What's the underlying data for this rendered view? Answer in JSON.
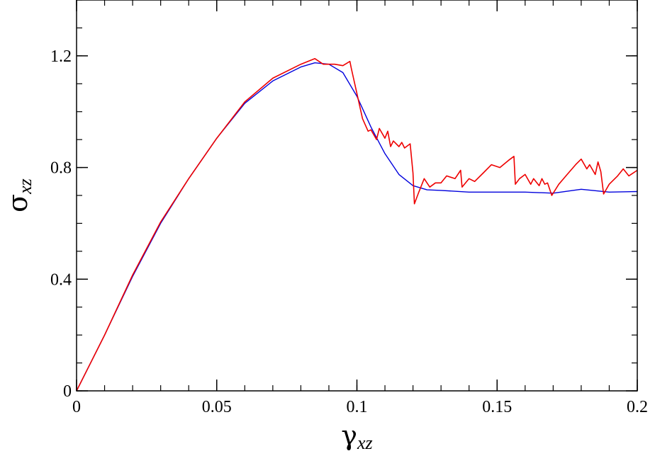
{
  "chart_data": {
    "type": "line",
    "xlabel": {
      "symbol": "γ",
      "subscript": "xz"
    },
    "ylabel": {
      "symbol": "σ",
      "subscript": "xz"
    },
    "xlim": [
      0,
      0.2
    ],
    "ylim": [
      0,
      1.4
    ],
    "x_ticks": [
      0,
      0.05,
      0.1,
      0.15,
      0.2
    ],
    "x_tick_labels": [
      "0",
      "0.05",
      "0.1",
      "0.15",
      "0.2"
    ],
    "x_minor_step": 0.01,
    "y_ticks": [
      0,
      0.4,
      0.8,
      1.2
    ],
    "y_tick_labels": [
      "0",
      "0.4",
      "0.8",
      "1.2"
    ],
    "y_minor_step": 0.1,
    "grid": false,
    "legend": "none",
    "series": [
      {
        "color": "#0000dd",
        "x": [
          0,
          0.01,
          0.02,
          0.03,
          0.04,
          0.05,
          0.06,
          0.07,
          0.08,
          0.085,
          0.09,
          0.095,
          0.1,
          0.105,
          0.11,
          0.115,
          0.12,
          0.125,
          0.13,
          0.14,
          0.15,
          0.16,
          0.17,
          0.18,
          0.19,
          0.2
        ],
        "values": [
          0,
          0.2,
          0.41,
          0.6,
          0.76,
          0.905,
          1.03,
          1.11,
          1.16,
          1.175,
          1.17,
          1.14,
          1.055,
          0.945,
          0.85,
          0.775,
          0.735,
          0.72,
          0.718,
          0.712,
          0.712,
          0.712,
          0.708,
          0.722,
          0.712,
          0.714
        ]
      },
      {
        "color": "#ee0000",
        "x": [
          0,
          0.01,
          0.02,
          0.03,
          0.04,
          0.05,
          0.06,
          0.07,
          0.08,
          0.085,
          0.088,
          0.092,
          0.095,
          0.0975,
          0.098,
          0.1,
          0.102,
          0.104,
          0.105,
          0.107,
          0.108,
          0.11,
          0.111,
          0.112,
          0.113,
          0.115,
          0.116,
          0.117,
          0.119,
          0.12,
          0.1205,
          0.122,
          0.124,
          0.126,
          0.128,
          0.13,
          0.132,
          0.135,
          0.137,
          0.1375,
          0.14,
          0.142,
          0.145,
          0.148,
          0.151,
          0.154,
          0.156,
          0.1565,
          0.158,
          0.16,
          0.162,
          0.163,
          0.165,
          0.166,
          0.167,
          0.168,
          0.169,
          0.1695,
          0.172,
          0.175,
          0.178,
          0.18,
          0.182,
          0.183,
          0.185,
          0.186,
          0.187,
          0.188,
          0.19,
          0.193,
          0.195,
          0.197,
          0.2
        ],
        "values": [
          0,
          0.2,
          0.415,
          0.605,
          0.76,
          0.905,
          1.035,
          1.12,
          1.17,
          1.19,
          1.17,
          1.17,
          1.165,
          1.18,
          1.155,
          1.065,
          0.975,
          0.93,
          0.935,
          0.9,
          0.94,
          0.905,
          0.93,
          0.875,
          0.895,
          0.875,
          0.89,
          0.87,
          0.885,
          0.78,
          0.67,
          0.71,
          0.76,
          0.73,
          0.745,
          0.745,
          0.77,
          0.76,
          0.79,
          0.73,
          0.76,
          0.75,
          0.78,
          0.81,
          0.8,
          0.825,
          0.84,
          0.74,
          0.76,
          0.775,
          0.74,
          0.76,
          0.735,
          0.76,
          0.74,
          0.745,
          0.715,
          0.7,
          0.74,
          0.775,
          0.81,
          0.83,
          0.795,
          0.81,
          0.775,
          0.82,
          0.785,
          0.705,
          0.74,
          0.77,
          0.795,
          0.77,
          0.79
        ]
      }
    ]
  }
}
